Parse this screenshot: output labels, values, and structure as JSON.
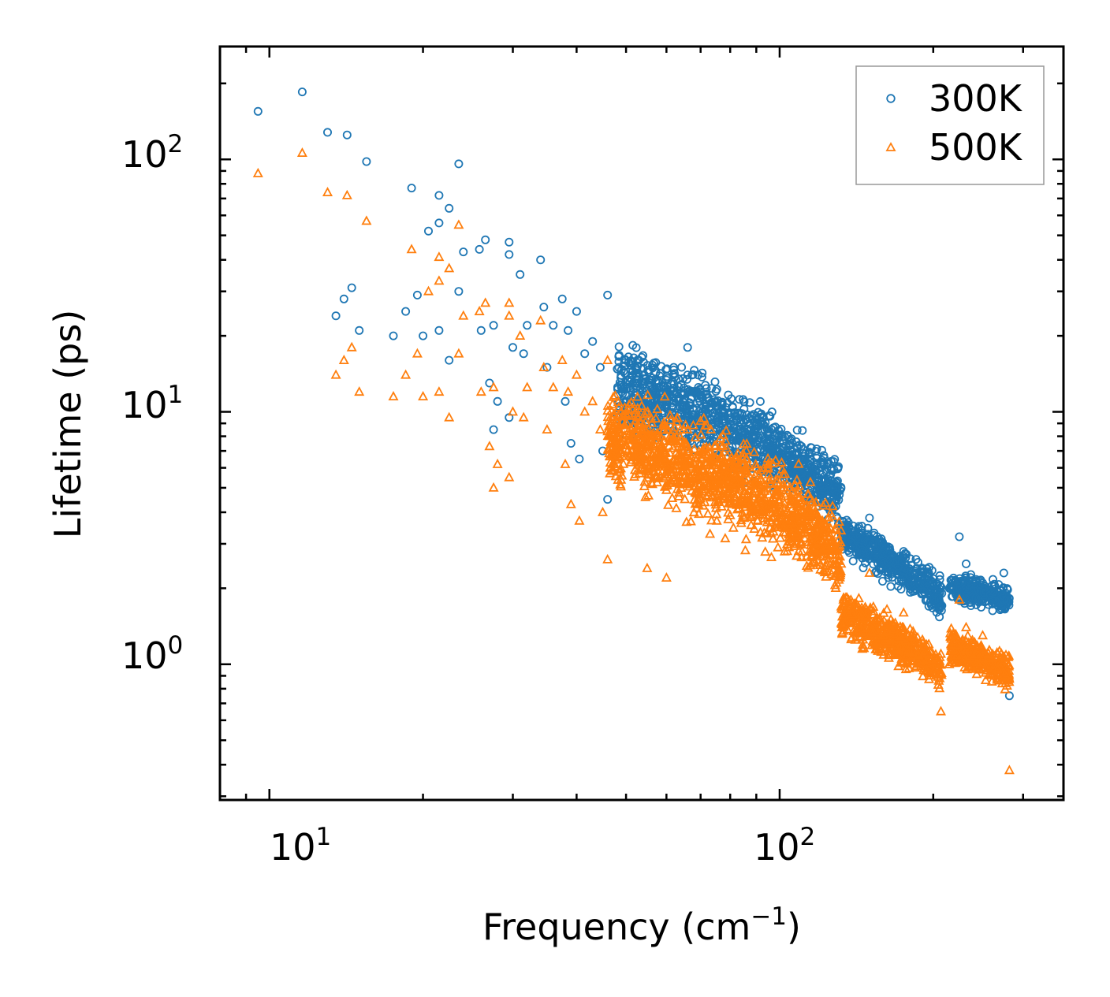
{
  "chart_data": {
    "type": "scatter",
    "xscale": "log",
    "yscale": "log",
    "xlabel": "Frequency (cm",
    "xlabel_sup": "−1",
    "xlabel_close": ")",
    "ylabel": "Lifetime (ps)",
    "xlim": [
      8,
      360
    ],
    "ylim": [
      0.29,
      280
    ],
    "xticks": [
      {
        "base": "10",
        "exp": "1",
        "value": 10
      },
      {
        "base": "10",
        "exp": "2",
        "value": 100
      }
    ],
    "yticks": [
      {
        "base": "10",
        "exp": "0",
        "value": 1
      },
      {
        "base": "10",
        "exp": "1",
        "value": 10
      },
      {
        "base": "10",
        "exp": "2",
        "value": 100
      }
    ],
    "legend_position": "top-right",
    "series": [
      {
        "name": "300K",
        "marker": "circle",
        "color": "#1f77b4",
        "points": [
          [
            9.5,
            155
          ],
          [
            11.6,
            185
          ],
          [
            13.0,
            128
          ],
          [
            14.2,
            125
          ],
          [
            15.5,
            98
          ],
          [
            19.0,
            77
          ],
          [
            21.5,
            72
          ],
          [
            22.5,
            64
          ],
          [
            23.5,
            96
          ],
          [
            20.5,
            52
          ],
          [
            21.5,
            56
          ],
          [
            26.5,
            48
          ],
          [
            29.5,
            47
          ],
          [
            29.5,
            42
          ],
          [
            24.0,
            43
          ],
          [
            25.8,
            44
          ],
          [
            31.0,
            35
          ],
          [
            34.0,
            40
          ],
          [
            14.5,
            31
          ],
          [
            14.0,
            28
          ],
          [
            18.5,
            25
          ],
          [
            13.5,
            24
          ],
          [
            21.5,
            21
          ],
          [
            15.0,
            21
          ],
          [
            17.5,
            20
          ],
          [
            20.0,
            20
          ],
          [
            19.5,
            29
          ],
          [
            23.5,
            30
          ],
          [
            22.5,
            16
          ],
          [
            27.0,
            13
          ],
          [
            27.5,
            8.5
          ],
          [
            29.5,
            9.5
          ],
          [
            28.0,
            11
          ],
          [
            26.0,
            21
          ],
          [
            27.5,
            22
          ],
          [
            32.0,
            22
          ],
          [
            30.0,
            18
          ],
          [
            31.5,
            17
          ],
          [
            34.5,
            26
          ],
          [
            36.0,
            22
          ],
          [
            37.5,
            28
          ],
          [
            38.5,
            21
          ],
          [
            40.0,
            25
          ],
          [
            41.5,
            17
          ],
          [
            43.0,
            19
          ],
          [
            44.5,
            15
          ],
          [
            46.0,
            29
          ],
          [
            39.0,
            7.5
          ],
          [
            38.0,
            11
          ],
          [
            35.0,
            15
          ],
          [
            45.0,
            7
          ],
          [
            46.0,
            4.5
          ],
          [
            40.5,
            6.5
          ],
          [
            66.0,
            18
          ],
          [
            66.0,
            14
          ],
          [
            62.0,
            15
          ],
          [
            58.5,
            11
          ],
          [
            75.0,
            11
          ],
          [
            82.0,
            9.2
          ],
          [
            92.0,
            8.9
          ],
          [
            98.0,
            7.5
          ],
          [
            104.0,
            6.7
          ],
          [
            112.0,
            6.1
          ],
          [
            117.0,
            5.6
          ],
          [
            122.0,
            5.3
          ],
          [
            128.0,
            4.4
          ],
          [
            150.0,
            3.8
          ],
          [
            175.0,
            2.8
          ],
          [
            196.0,
            2.3
          ],
          [
            215.0,
            2.0
          ],
          [
            225.0,
            3.2
          ],
          [
            232.0,
            2.5
          ],
          [
            250.0,
            2.1
          ],
          [
            275.0,
            2.3
          ],
          [
            282.0,
            0.75
          ]
        ]
      },
      {
        "name": "500K",
        "marker": "triangle",
        "color": "#ff7f0e",
        "points": [
          [
            9.5,
            88
          ],
          [
            11.6,
            106
          ],
          [
            13.0,
            74
          ],
          [
            14.2,
            72
          ],
          [
            15.5,
            57
          ],
          [
            19.0,
            44
          ],
          [
            21.5,
            41
          ],
          [
            22.5,
            37
          ],
          [
            23.5,
            55
          ],
          [
            20.5,
            30
          ],
          [
            21.5,
            33
          ],
          [
            26.5,
            27
          ],
          [
            29.5,
            27
          ],
          [
            29.5,
            24
          ],
          [
            24.0,
            24
          ],
          [
            25.8,
            25
          ],
          [
            31.0,
            20
          ],
          [
            34.0,
            23
          ],
          [
            14.5,
            18
          ],
          [
            14.0,
            16
          ],
          [
            18.5,
            14
          ],
          [
            13.5,
            14
          ],
          [
            21.5,
            12
          ],
          [
            15.0,
            12
          ],
          [
            17.5,
            11.5
          ],
          [
            20.0,
            11.5
          ],
          [
            19.5,
            17
          ],
          [
            23.5,
            17
          ],
          [
            22.5,
            9.5
          ],
          [
            27.0,
            7.3
          ],
          [
            27.5,
            5
          ],
          [
            29.5,
            5.5
          ],
          [
            28.0,
            6.2
          ],
          [
            26.0,
            12
          ],
          [
            27.5,
            12.5
          ],
          [
            32.0,
            12.5
          ],
          [
            30.0,
            10
          ],
          [
            31.5,
            9.5
          ],
          [
            34.5,
            15
          ],
          [
            36.0,
            12.5
          ],
          [
            37.5,
            16
          ],
          [
            38.5,
            12
          ],
          [
            40.0,
            14
          ],
          [
            41.5,
            10
          ],
          [
            43.0,
            11
          ],
          [
            44.5,
            8.5
          ],
          [
            46.0,
            16
          ],
          [
            39.0,
            4.3
          ],
          [
            38.0,
            6.2
          ],
          [
            35.0,
            8.5
          ],
          [
            45.0,
            4
          ],
          [
            46.0,
            2.6
          ],
          [
            40.5,
            3.7
          ],
          [
            55.0,
            2.4
          ],
          [
            60.0,
            2.2
          ],
          [
            66.0,
            8.5
          ],
          [
            75.0,
            6.5
          ],
          [
            82.0,
            5.3
          ],
          [
            92.0,
            5.0
          ],
          [
            104.0,
            3.9
          ],
          [
            112.0,
            3.4
          ],
          [
            122.0,
            2.8
          ],
          [
            132.0,
            2.5
          ],
          [
            136.0,
            1.6
          ],
          [
            150.0,
            2.3
          ],
          [
            175.0,
            1.6
          ],
          [
            196.0,
            1.2
          ],
          [
            207.0,
            0.65
          ],
          [
            215.0,
            1.0
          ],
          [
            225.0,
            1.8
          ],
          [
            232.0,
            1.4
          ],
          [
            250.0,
            1.3
          ],
          [
            265.0,
            0.9
          ],
          [
            282.0,
            0.38
          ]
        ]
      }
    ],
    "clusters": [
      {
        "series": 0,
        "x": [
          48,
          132
        ],
        "y": [
          [
            10,
            16
          ],
          [
            4.2,
            5.0
          ]
        ],
        "spread": 0.2,
        "n": 1100
      },
      {
        "series": 0,
        "x": [
          132,
          208
        ],
        "y": [
          [
            3.0,
            3.6
          ],
          [
            1.6,
            2.0
          ]
        ],
        "spread": 0.1,
        "n": 500
      },
      {
        "series": 0,
        "x": [
          216,
          282
        ],
        "y": [
          [
            2.0,
            2.1
          ],
          [
            1.8,
            1.8
          ]
        ],
        "spread": 0.1,
        "n": 320
      },
      {
        "series": 1,
        "x": [
          46,
          132
        ],
        "y": [
          [
            6.5,
            10
          ],
          [
            2.4,
            3.0
          ]
        ],
        "spread": 0.26,
        "n": 1300
      },
      {
        "series": 1,
        "x": [
          132,
          208
        ],
        "y": [
          [
            1.4,
            1.8
          ],
          [
            0.9,
            1.0
          ]
        ],
        "spread": 0.12,
        "n": 500
      },
      {
        "series": 1,
        "x": [
          216,
          282
        ],
        "y": [
          [
            1.15,
            1.2
          ],
          [
            0.9,
            0.95
          ]
        ],
        "spread": 0.12,
        "n": 320
      }
    ]
  }
}
